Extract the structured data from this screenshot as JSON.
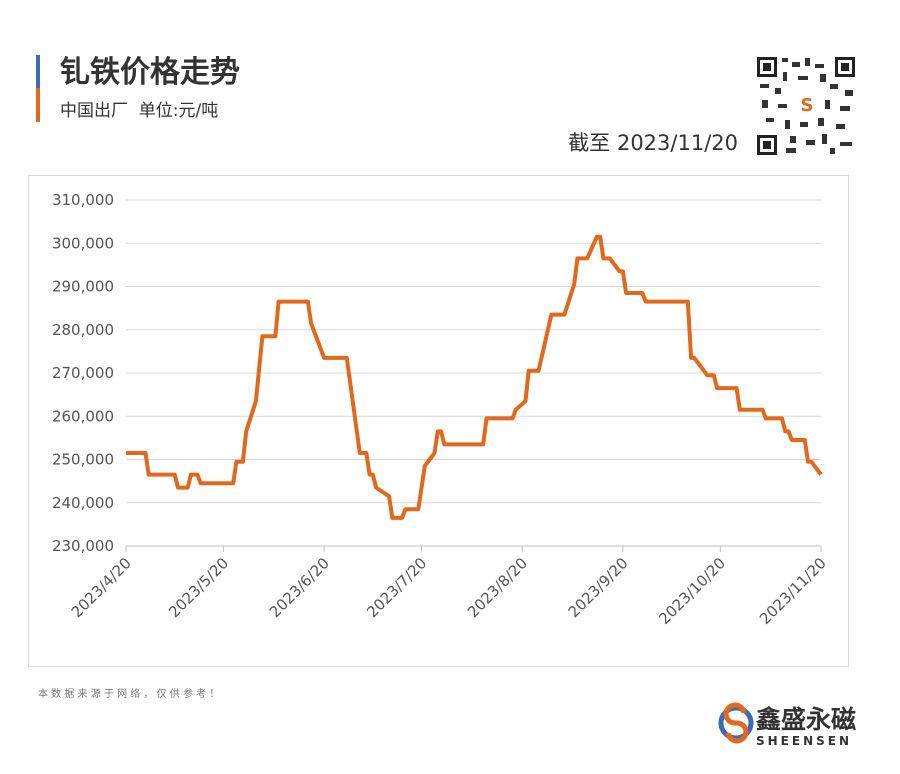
{
  "header": {
    "title": "钆铁价格走势",
    "subtitle": "中国出厂  单位:元/吨",
    "as_of": "截至 2023/11/20"
  },
  "chart_data": {
    "type": "line",
    "color": "#e2691c",
    "grid": true,
    "x": [
      "2023/4/20",
      "2023/4/26",
      "2023/4/27",
      "2023/5/5",
      "2023/5/6",
      "2023/5/9",
      "2023/5/10",
      "2023/5/12",
      "2023/5/13",
      "2023/5/23",
      "2023/5/24",
      "2023/5/26",
      "2023/5/27",
      "2023/5/30",
      "2023/6/1",
      "2023/6/5",
      "2023/6/6",
      "2023/6/15",
      "2023/6/16",
      "2023/6/18",
      "2023/6/20",
      "2023/6/27",
      "2023/7/1",
      "2023/7/3",
      "2023/7/4",
      "2023/7/5",
      "2023/7/6",
      "2023/7/10",
      "2023/7/11",
      "2023/7/14",
      "2023/7/15",
      "2023/7/19",
      "2023/7/21",
      "2023/7/24",
      "2023/7/25",
      "2023/7/26",
      "2023/7/27",
      "2023/8/8",
      "2023/8/9",
      "2023/8/17",
      "2023/8/18",
      "2023/8/21",
      "2023/8/22",
      "2023/8/25",
      "2023/8/29",
      "2023/9/2",
      "2023/9/5",
      "2023/9/6",
      "2023/9/9",
      "2023/9/12",
      "2023/9/13",
      "2023/9/14",
      "2023/9/16",
      "2023/9/19",
      "2023/9/20",
      "2023/9/21",
      "2023/9/26",
      "2023/9/27",
      "2023/10/10",
      "2023/10/11",
      "2023/10/12",
      "2023/10/14",
      "2023/10/16",
      "2023/10/18",
      "2023/10/19",
      "2023/10/25",
      "2023/10/26",
      "2023/11/2",
      "2023/11/3",
      "2023/11/8",
      "2023/11/9",
      "2023/11/10",
      "2023/11/11",
      "2023/11/15",
      "2023/11/16",
      "2023/11/17",
      "2023/11/20"
    ],
    "values": [
      251500,
      251500,
      246500,
      246500,
      243500,
      243500,
      246500,
      246500,
      244500,
      244500,
      249500,
      249500,
      256500,
      263500,
      278500,
      278500,
      286500,
      286500,
      281500,
      277500,
      273500,
      273500,
      251500,
      251500,
      246500,
      246500,
      243500,
      241500,
      236500,
      236500,
      238500,
      238500,
      248500,
      251500,
      256500,
      256500,
      253500,
      253500,
      259500,
      259500,
      261500,
      263500,
      270500,
      270500,
      283500,
      283500,
      290500,
      296500,
      296500,
      301500,
      301500,
      296500,
      296500,
      293500,
      293500,
      288500,
      288500,
      286500,
      286500,
      273500,
      273500,
      271500,
      269500,
      269500,
      266500,
      266500,
      261500,
      261500,
      259500,
      259500,
      256500,
      256500,
      254500,
      254500,
      249500,
      249500,
      246500
    ],
    "xlim": [
      "2023/4/20",
      "2023/11/20"
    ],
    "xticks": [
      "2023/4/20",
      "2023/5/20",
      "2023/6/20",
      "2023/7/20",
      "2023/8/20",
      "2023/9/20",
      "2023/10/20",
      "2023/11/20"
    ],
    "ylim": [
      230000,
      310000
    ],
    "yticks": [
      {
        "value": 230000,
        "label": "230,000"
      },
      {
        "value": 240000,
        "label": "240,000"
      },
      {
        "value": 250000,
        "label": "250,000"
      },
      {
        "value": 260000,
        "label": "260,000"
      },
      {
        "value": 270000,
        "label": "270,000"
      },
      {
        "value": 280000,
        "label": "280,000"
      },
      {
        "value": 290000,
        "label": "290,000"
      },
      {
        "value": 300000,
        "label": "300,000"
      },
      {
        "value": 310000,
        "label": "310,000"
      }
    ]
  },
  "footer": {
    "note": "本 数 据 来 源 于 网 络 ， 仅 供 参 考 ！",
    "brand": "鑫盛永磁",
    "brand_en": "SHEENSEN"
  }
}
